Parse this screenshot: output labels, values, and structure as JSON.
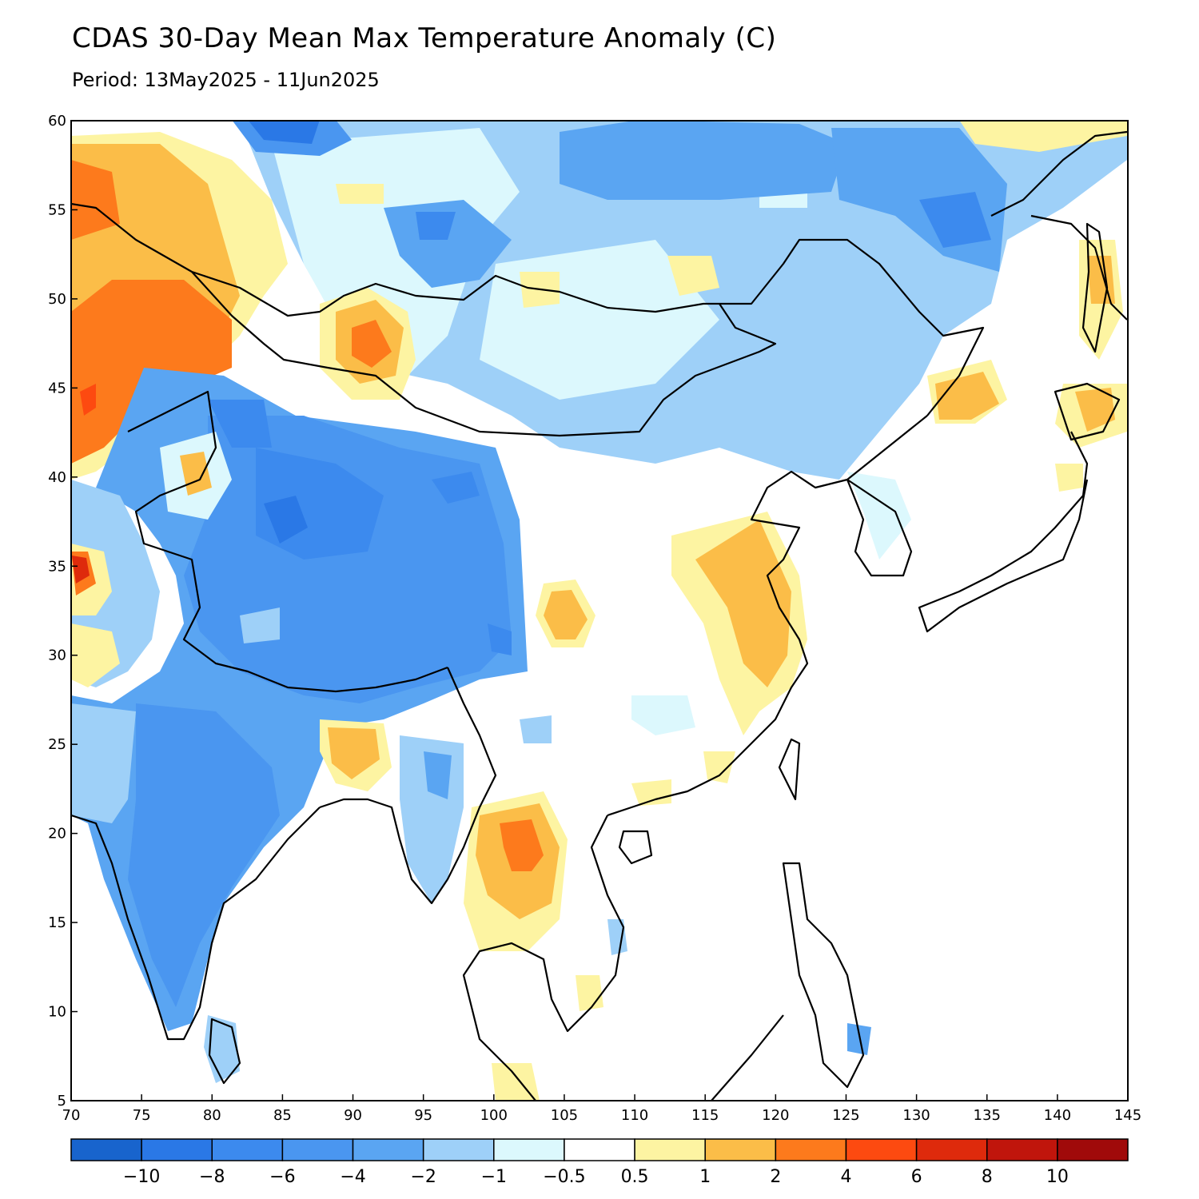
{
  "title": "CDAS 30-Day Mean Max Temperature Anomaly (C)",
  "subtitle": "Period: 13May2025 - 11Jun2025",
  "map": {
    "lon_range": [
      70,
      145
    ],
    "lat_range": [
      5,
      60
    ],
    "lon_ticks": [
      "70",
      "75",
      "80",
      "85",
      "90",
      "95",
      "100",
      "105",
      "110",
      "115",
      "120",
      "125",
      "130",
      "135",
      "140",
      "145"
    ],
    "lat_ticks": [
      "5",
      "10",
      "15",
      "20",
      "25",
      "30",
      "35",
      "40",
      "45",
      "50",
      "55",
      "60"
    ]
  },
  "colorbar": {
    "colors": [
      "#1864cd",
      "#2a78e6",
      "#3c8aee",
      "#4a96f0",
      "#5aa5f2",
      "#9ed0f8",
      "#dcf8fd",
      "#ffffff",
      "#fdf4a2",
      "#fbbd48",
      "#fd7a1c",
      "#fd4a10",
      "#de2a0c",
      "#c0150c",
      "#a00a0a"
    ],
    "labels": [
      "−10",
      "−8",
      "−6",
      "−4",
      "−2",
      "−1",
      "−0.5",
      "0.5",
      "1",
      "2",
      "4",
      "6",
      "8",
      "10"
    ]
  }
}
